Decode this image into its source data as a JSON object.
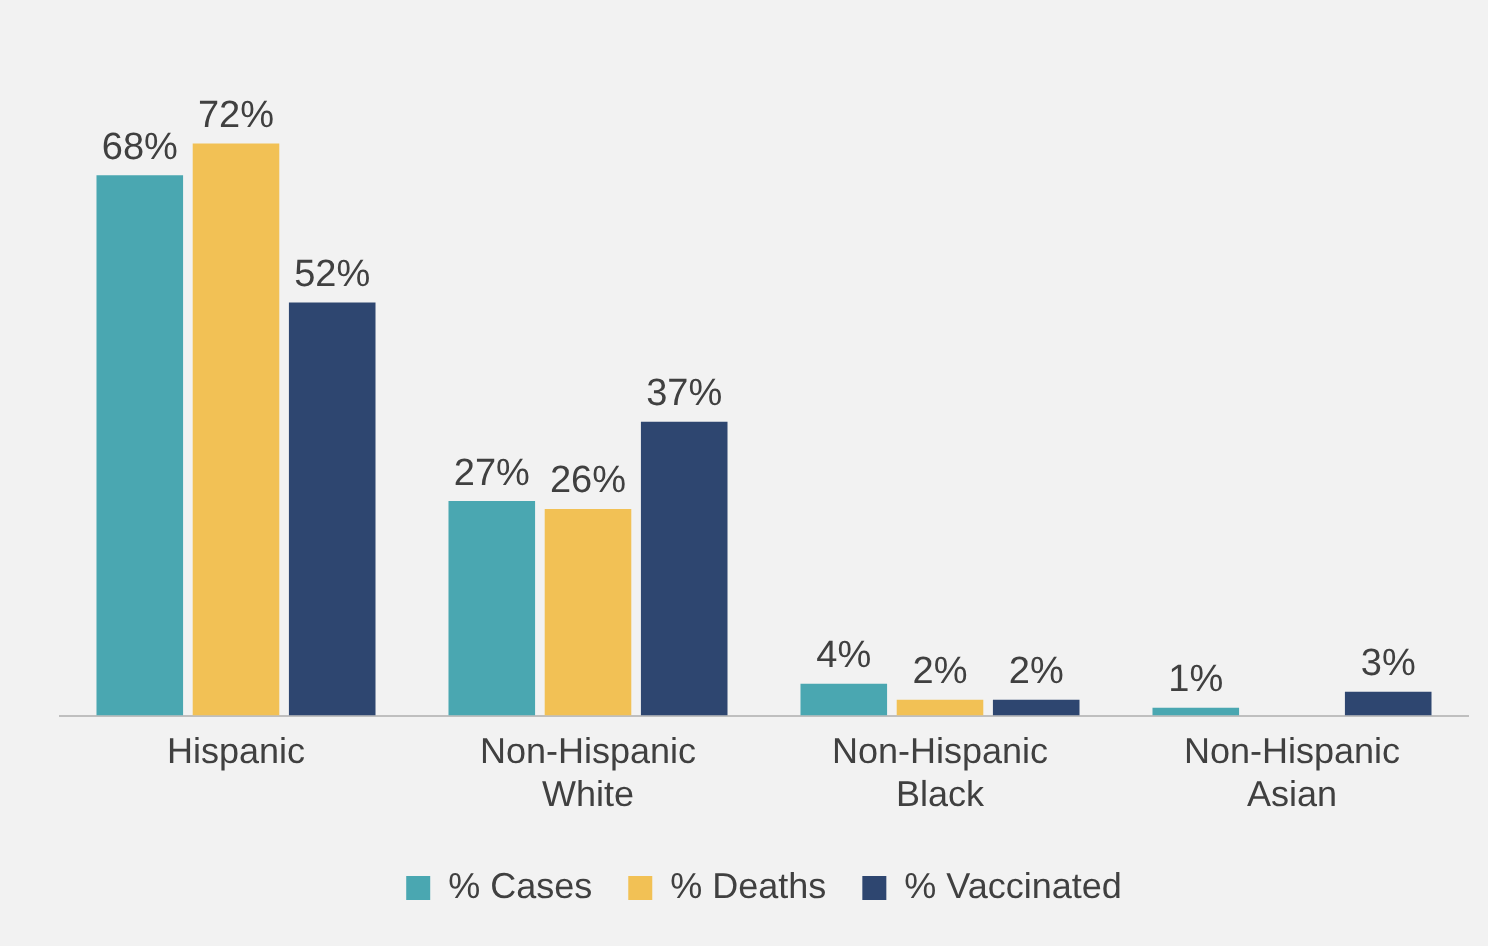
{
  "chart_data": {
    "type": "bar",
    "categories": [
      "Hispanic",
      "Non-Hispanic White",
      "Non-Hispanic Black",
      "Non-Hispanic Asian"
    ],
    "series": [
      {
        "name": "% Cases",
        "color": "#4aa7b1",
        "values": [
          68,
          27,
          4,
          1
        ],
        "value_labels": [
          "68%",
          "27%",
          "4%",
          "1%"
        ]
      },
      {
        "name": "% Deaths",
        "color": "#f2c155",
        "values": [
          72,
          26,
          2,
          null
        ],
        "value_labels": [
          "72%",
          "26%",
          "2%",
          null
        ]
      },
      {
        "name": "% Vaccinated",
        "color": "#2e4670",
        "values": [
          52,
          37,
          2,
          3
        ],
        "value_labels": [
          "52%",
          "37%",
          "2%",
          "3%"
        ]
      }
    ],
    "legend": "bottom",
    "grid": false
  }
}
